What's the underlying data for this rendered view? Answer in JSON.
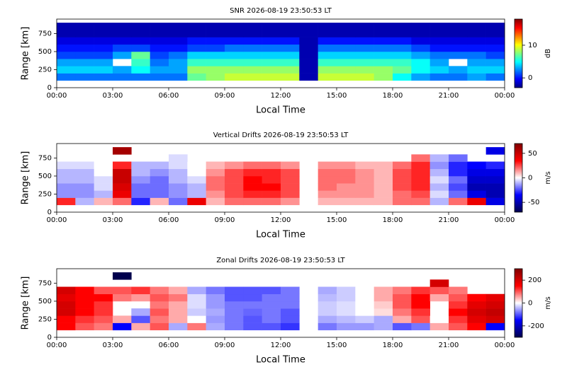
{
  "chart_data": [
    {
      "type": "heatmap",
      "title": "SNR 2026-08-19 23:50:53 LT",
      "xlabel": "Local Time",
      "ylabel": "Range [km]",
      "colorbar_label": "dB",
      "x": [
        0,
        1,
        2,
        3,
        4,
        5,
        6,
        7,
        8,
        9,
        10,
        11,
        12,
        13,
        14,
        15,
        16,
        17,
        18,
        19,
        20,
        21,
        22,
        23
      ],
      "y": [
        100,
        200,
        300,
        400,
        500,
        600,
        700,
        800
      ],
      "values": [
        [
          2,
          2,
          2,
          2,
          2,
          2,
          2,
          7,
          8,
          9,
          9,
          9,
          9,
          -2,
          9,
          9,
          9,
          8,
          5,
          3,
          2,
          2,
          3,
          2
        ],
        [
          4,
          4,
          4,
          3,
          5,
          3,
          3,
          8,
          8,
          8,
          8,
          8,
          8,
          -2,
          8,
          8,
          8,
          8,
          7,
          5,
          4,
          3,
          4,
          4
        ],
        [
          3,
          3,
          3,
          null,
          6,
          2,
          3,
          6,
          6,
          6,
          6,
          6,
          6,
          -2,
          6,
          6,
          6,
          6,
          6,
          5,
          3,
          null,
          3,
          3
        ],
        [
          1,
          1,
          1,
          3,
          7,
          1,
          2,
          4,
          4,
          4,
          4,
          4,
          4,
          -2,
          4,
          4,
          4,
          4,
          4,
          3,
          2,
          2,
          2,
          1
        ],
        [
          0,
          0,
          0,
          1,
          1,
          0,
          0,
          1,
          1,
          2,
          2,
          2,
          2,
          -2,
          2,
          2,
          2,
          2,
          2,
          1,
          0,
          0,
          0,
          0
        ],
        [
          -1,
          -1,
          -1,
          -1,
          -1,
          -1,
          -1,
          0,
          0,
          0,
          0,
          0,
          0,
          -2,
          0,
          0,
          0,
          0,
          0,
          -1,
          -1,
          -1,
          -1,
          -1
        ],
        [
          -2,
          -2,
          -2,
          -2,
          -2,
          -2,
          -2,
          -2,
          -2,
          -2,
          -2,
          -2,
          -2,
          -2,
          -2,
          -2,
          -2,
          -2,
          -2,
          -2,
          -2,
          -2,
          -2,
          -2
        ],
        [
          -2,
          -2,
          -2,
          -2,
          -2,
          -2,
          -2,
          -2,
          -2,
          -2,
          -2,
          -2,
          -2,
          -2,
          -2,
          -2,
          -2,
          -2,
          -2,
          -2,
          -2,
          -2,
          -2,
          -2
        ]
      ],
      "xlim": [
        0,
        24
      ],
      "xticks": [
        {
          "value": 0,
          "label": "00:00"
        },
        {
          "value": 3,
          "label": "03:00"
        },
        {
          "value": 6,
          "label": "06:00"
        },
        {
          "value": 9,
          "label": "09:00"
        },
        {
          "value": 12,
          "label": "12:00"
        },
        {
          "value": 15,
          "label": "15:00"
        },
        {
          "value": 18,
          "label": "18:00"
        },
        {
          "value": 21,
          "label": "21:00"
        },
        {
          "value": 24,
          "label": "00:00"
        }
      ],
      "ylim": [
        0,
        950
      ],
      "yticks": [
        0,
        250,
        500,
        750
      ],
      "zlim": [
        -3,
        18
      ],
      "zticks": [
        0,
        10
      ],
      "colorscale": [
        "#00007f",
        "#0000ff",
        "#007fff",
        "#00ffff",
        "#7fff7f",
        "#ffff00",
        "#ff7f00",
        "#ff0000",
        "#7f0000"
      ]
    },
    {
      "type": "heatmap",
      "title": "Vertical Drifts 2026-08-19 23:50:53 LT",
      "xlabel": "Local Time",
      "ylabel": "Range [km]",
      "colorbar_label": "m/s",
      "x": [
        0,
        1,
        2,
        3,
        4,
        5,
        6,
        7,
        8,
        9,
        10,
        11,
        12,
        13,
        14,
        15,
        16,
        17,
        18,
        19,
        20,
        21,
        22,
        23
      ],
      "y": [
        100,
        200,
        300,
        400,
        500,
        600,
        700,
        800
      ],
      "values": [
        [
          30,
          -10,
          10,
          20,
          -30,
          10,
          -20,
          40,
          10,
          20,
          20,
          20,
          15,
          null,
          10,
          10,
          10,
          10,
          20,
          20,
          -10,
          20,
          40,
          -40
        ],
        [
          -15,
          -15,
          -10,
          40,
          -20,
          -20,
          -15,
          -10,
          15,
          25,
          30,
          30,
          25,
          null,
          15,
          15,
          15,
          10,
          20,
          25,
          -5,
          -20,
          -40,
          -50
        ],
        [
          -15,
          -15,
          -5,
          45,
          -20,
          -20,
          -15,
          -10,
          20,
          25,
          35,
          35,
          25,
          null,
          20,
          15,
          15,
          10,
          25,
          30,
          -10,
          -25,
          -50,
          -50
        ],
        [
          -10,
          -10,
          -5,
          50,
          -15,
          -20,
          -10,
          -5,
          20,
          25,
          35,
          30,
          25,
          null,
          20,
          20,
          15,
          10,
          25,
          30,
          -5,
          -20,
          -45,
          -45
        ],
        [
          -10,
          -10,
          0,
          50,
          -10,
          -15,
          -10,
          0,
          15,
          25,
          30,
          30,
          25,
          null,
          20,
          20,
          15,
          10,
          25,
          30,
          -10,
          -30,
          -40,
          -40
        ],
        [
          -5,
          -5,
          0,
          30,
          -10,
          -10,
          -5,
          0,
          10,
          15,
          20,
          20,
          15,
          null,
          15,
          15,
          10,
          10,
          20,
          30,
          -15,
          -30,
          -35,
          -30
        ],
        [
          null,
          null,
          null,
          null,
          null,
          null,
          -5,
          null,
          null,
          null,
          null,
          null,
          null,
          null,
          null,
          null,
          null,
          null,
          null,
          20,
          -10,
          -20,
          null,
          null
        ],
        [
          null,
          null,
          null,
          60,
          null,
          null,
          null,
          null,
          null,
          null,
          null,
          null,
          null,
          null,
          null,
          null,
          null,
          null,
          null,
          null,
          null,
          null,
          null,
          -40
        ]
      ],
      "xlim": [
        0,
        24
      ],
      "xticks": [
        {
          "value": 0,
          "label": "00:00"
        },
        {
          "value": 3,
          "label": "03:00"
        },
        {
          "value": 6,
          "label": "06:00"
        },
        {
          "value": 9,
          "label": "09:00"
        },
        {
          "value": 12,
          "label": "12:00"
        },
        {
          "value": 15,
          "label": "15:00"
        },
        {
          "value": 18,
          "label": "18:00"
        },
        {
          "value": 21,
          "label": "21:00"
        },
        {
          "value": 24,
          "label": "00:00"
        }
      ],
      "ylim": [
        0,
        950
      ],
      "yticks": [
        0,
        250,
        500,
        750
      ],
      "zlim": [
        -70,
        70
      ],
      "zticks": [
        -50,
        0,
        50
      ],
      "colorscale": [
        "#00004c",
        "#0000ff",
        "#ffffff",
        "#ff0000",
        "#7f0000"
      ]
    },
    {
      "type": "heatmap",
      "title": "Zonal Drifts 2026-08-19 23:50:53 LT",
      "xlabel": "Local Time",
      "ylabel": "Range [km]",
      "colorbar_label": "m/s",
      "x": [
        0,
        1,
        2,
        3,
        4,
        5,
        6,
        7,
        8,
        9,
        10,
        11,
        12,
        13,
        14,
        15,
        16,
        17,
        18,
        19,
        20,
        21,
        22,
        23
      ],
      "y": [
        100,
        200,
        300,
        400,
        500,
        600,
        700,
        800
      ],
      "values": [
        [
          150,
          100,
          80,
          -150,
          50,
          100,
          -50,
          80,
          -50,
          -80,
          -100,
          -100,
          -120,
          null,
          -80,
          -60,
          -60,
          -50,
          -100,
          -80,
          50,
          100,
          150,
          -150
        ],
        [
          150,
          120,
          100,
          50,
          -100,
          80,
          50,
          0,
          -60,
          -80,
          -100,
          -80,
          -100,
          null,
          -50,
          -40,
          -30,
          -50,
          50,
          100,
          0,
          120,
          180,
          200
        ],
        [
          200,
          150,
          120,
          null,
          -50,
          100,
          50,
          -30,
          -50,
          -80,
          -90,
          -80,
          -100,
          null,
          -30,
          -20,
          0,
          20,
          80,
          120,
          null,
          150,
          200,
          220
        ],
        [
          200,
          150,
          120,
          null,
          null,
          80,
          50,
          -20,
          -60,
          -80,
          -80,
          -80,
          -80,
          null,
          -30,
          -20,
          0,
          30,
          100,
          150,
          null,
          120,
          180,
          200
        ],
        [
          180,
          150,
          150,
          80,
          60,
          100,
          80,
          -20,
          -60,
          -100,
          -100,
          -80,
          -80,
          null,
          -40,
          -30,
          0,
          50,
          100,
          150,
          50,
          100,
          150,
          180
        ],
        [
          200,
          150,
          100,
          100,
          120,
          80,
          50,
          -50,
          -80,
          -100,
          -100,
          -100,
          -80,
          null,
          -50,
          -30,
          0,
          50,
          80,
          120,
          100,
          80,
          null,
          null
        ],
        [
          null,
          null,
          null,
          null,
          null,
          null,
          null,
          null,
          null,
          null,
          null,
          null,
          null,
          null,
          null,
          null,
          null,
          null,
          null,
          null,
          200,
          null,
          null,
          null
        ],
        [
          null,
          null,
          null,
          -300,
          null,
          null,
          null,
          null,
          null,
          null,
          null,
          null,
          null,
          null,
          null,
          null,
          null,
          null,
          null,
          null,
          null,
          null,
          null,
          null
        ]
      ],
      "xlim": [
        0,
        24
      ],
      "xticks": [
        {
          "value": 0,
          "label": "00:00"
        },
        {
          "value": 3,
          "label": "03:00"
        },
        {
          "value": 6,
          "label": "06:00"
        },
        {
          "value": 9,
          "label": "09:00"
        },
        {
          "value": 12,
          "label": "12:00"
        },
        {
          "value": 15,
          "label": "15:00"
        },
        {
          "value": 18,
          "label": "18:00"
        },
        {
          "value": 21,
          "label": "21:00"
        },
        {
          "value": 24,
          "label": "00:00"
        }
      ],
      "ylim": [
        0,
        950
      ],
      "yticks": [
        0,
        250,
        500,
        750
      ],
      "zlim": [
        -300,
        300
      ],
      "zticks": [
        -200,
        0,
        200
      ],
      "colorscale": [
        "#00004c",
        "#0000ff",
        "#ffffff",
        "#ff0000",
        "#7f0000"
      ]
    }
  ]
}
